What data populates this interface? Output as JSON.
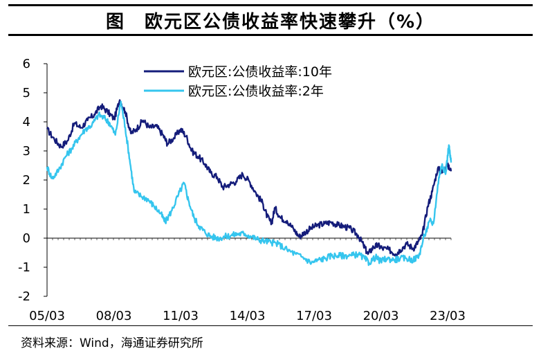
{
  "title": "图　欧元区公债收益率快速攀升（%）",
  "source": "资料来源：Wind，海通证券研究所",
  "chart_data": {
    "type": "line",
    "xlabel": "",
    "ylabel": "",
    "ylim": [
      -2,
      6
    ],
    "y_ticks": [
      "-2",
      "-1",
      "0",
      "1",
      "2",
      "3",
      "4",
      "5",
      "6"
    ],
    "x_ticks": [
      "05/03",
      "08/03",
      "11/03",
      "14/03",
      "17/03",
      "20/03",
      "23/03"
    ],
    "x_range": [
      2005.17,
      2023.4
    ],
    "grid": false,
    "legend_position": "top-left",
    "series": [
      {
        "name": "欧元区:公债收益率:10年",
        "color": "#141c7a",
        "points": [
          [
            2005.17,
            3.75
          ],
          [
            2005.5,
            3.4
          ],
          [
            2005.8,
            3.15
          ],
          [
            2006.1,
            3.35
          ],
          [
            2006.4,
            3.95
          ],
          [
            2006.7,
            3.8
          ],
          [
            2007.0,
            4.05
          ],
          [
            2007.3,
            4.25
          ],
          [
            2007.6,
            4.55
          ],
          [
            2007.9,
            4.35
          ],
          [
            2008.2,
            4.1
          ],
          [
            2008.45,
            4.75
          ],
          [
            2008.7,
            4.35
          ],
          [
            2008.95,
            3.6
          ],
          [
            2009.2,
            3.75
          ],
          [
            2009.5,
            4.05
          ],
          [
            2009.8,
            3.8
          ],
          [
            2010.1,
            3.85
          ],
          [
            2010.4,
            3.55
          ],
          [
            2010.6,
            3.25
          ],
          [
            2010.9,
            3.45
          ],
          [
            2011.2,
            3.75
          ],
          [
            2011.45,
            3.5
          ],
          [
            2011.7,
            3.0
          ],
          [
            2012.0,
            2.8
          ],
          [
            2012.3,
            2.55
          ],
          [
            2012.55,
            2.25
          ],
          [
            2012.85,
            2.1
          ],
          [
            2013.1,
            1.75
          ],
          [
            2013.4,
            1.85
          ],
          [
            2013.7,
            1.95
          ],
          [
            2014.0,
            2.2
          ],
          [
            2014.3,
            1.95
          ],
          [
            2014.6,
            1.55
          ],
          [
            2014.9,
            1.2
          ],
          [
            2015.1,
            0.75
          ],
          [
            2015.3,
            0.5
          ],
          [
            2015.45,
            1.05
          ],
          [
            2015.7,
            0.7
          ],
          [
            2016.0,
            0.6
          ],
          [
            2016.3,
            0.3
          ],
          [
            2016.55,
            0.05
          ],
          [
            2016.8,
            0.2
          ],
          [
            2017.1,
            0.35
          ],
          [
            2017.4,
            0.45
          ],
          [
            2017.7,
            0.5
          ],
          [
            2018.0,
            0.55
          ],
          [
            2018.3,
            0.45
          ],
          [
            2018.6,
            0.4
          ],
          [
            2018.9,
            0.3
          ],
          [
            2019.2,
            0.1
          ],
          [
            2019.45,
            -0.25
          ],
          [
            2019.65,
            -0.55
          ],
          [
            2019.9,
            -0.3
          ],
          [
            2020.1,
            -0.25
          ],
          [
            2020.3,
            -0.35
          ],
          [
            2020.6,
            -0.4
          ],
          [
            2020.9,
            -0.55
          ],
          [
            2021.1,
            -0.4
          ],
          [
            2021.4,
            -0.2
          ],
          [
            2021.7,
            -0.35
          ],
          [
            2021.9,
            -0.15
          ],
          [
            2022.1,
            0.1
          ],
          [
            2022.35,
            1.1
          ],
          [
            2022.55,
            1.6
          ],
          [
            2022.8,
            2.4
          ],
          [
            2023.0,
            2.25
          ],
          [
            2023.2,
            2.55
          ],
          [
            2023.4,
            2.3
          ]
        ]
      },
      {
        "name": "欧元区:公债收益率:2年",
        "color": "#35c5ee",
        "points": [
          [
            2005.17,
            2.45
          ],
          [
            2005.4,
            2.05
          ],
          [
            2005.7,
            2.35
          ],
          [
            2006.0,
            2.8
          ],
          [
            2006.3,
            3.1
          ],
          [
            2006.6,
            3.45
          ],
          [
            2006.9,
            3.75
          ],
          [
            2007.2,
            3.9
          ],
          [
            2007.5,
            4.25
          ],
          [
            2007.8,
            4.1
          ],
          [
            2008.0,
            3.95
          ],
          [
            2008.25,
            3.55
          ],
          [
            2008.5,
            4.7
          ],
          [
            2008.7,
            3.8
          ],
          [
            2008.9,
            2.7
          ],
          [
            2009.1,
            1.6
          ],
          [
            2009.4,
            1.45
          ],
          [
            2009.7,
            1.35
          ],
          [
            2010.0,
            1.1
          ],
          [
            2010.3,
            0.85
          ],
          [
            2010.5,
            0.55
          ],
          [
            2010.8,
            0.95
          ],
          [
            2011.1,
            1.5
          ],
          [
            2011.35,
            1.9
          ],
          [
            2011.55,
            1.3
          ],
          [
            2011.8,
            0.7
          ],
          [
            2012.05,
            0.4
          ],
          [
            2012.3,
            0.2
          ],
          [
            2012.6,
            0.05
          ],
          [
            2012.9,
            0.0
          ],
          [
            2013.2,
            0.05
          ],
          [
            2013.5,
            0.1
          ],
          [
            2013.8,
            0.15
          ],
          [
            2014.1,
            0.15
          ],
          [
            2014.4,
            0.05
          ],
          [
            2014.7,
            -0.05
          ],
          [
            2015.0,
            -0.1
          ],
          [
            2015.3,
            -0.15
          ],
          [
            2015.6,
            -0.2
          ],
          [
            2016.0,
            -0.4
          ],
          [
            2016.4,
            -0.55
          ],
          [
            2016.8,
            -0.7
          ],
          [
            2017.1,
            -0.85
          ],
          [
            2017.4,
            -0.75
          ],
          [
            2017.7,
            -0.7
          ],
          [
            2018.0,
            -0.6
          ],
          [
            2018.3,
            -0.6
          ],
          [
            2018.6,
            -0.6
          ],
          [
            2018.9,
            -0.6
          ],
          [
            2019.2,
            -0.55
          ],
          [
            2019.5,
            -0.7
          ],
          [
            2019.7,
            -0.85
          ],
          [
            2020.0,
            -0.65
          ],
          [
            2020.2,
            -0.8
          ],
          [
            2020.5,
            -0.7
          ],
          [
            2020.8,
            -0.75
          ],
          [
            2021.1,
            -0.7
          ],
          [
            2021.4,
            -0.7
          ],
          [
            2021.7,
            -0.75
          ],
          [
            2021.95,
            -0.6
          ],
          [
            2022.2,
            0.1
          ],
          [
            2022.45,
            0.6
          ],
          [
            2022.6,
            0.5
          ],
          [
            2022.85,
            2.1
          ],
          [
            2023.0,
            2.55
          ],
          [
            2023.15,
            2.2
          ],
          [
            2023.3,
            3.2
          ],
          [
            2023.4,
            2.6
          ]
        ]
      }
    ]
  }
}
